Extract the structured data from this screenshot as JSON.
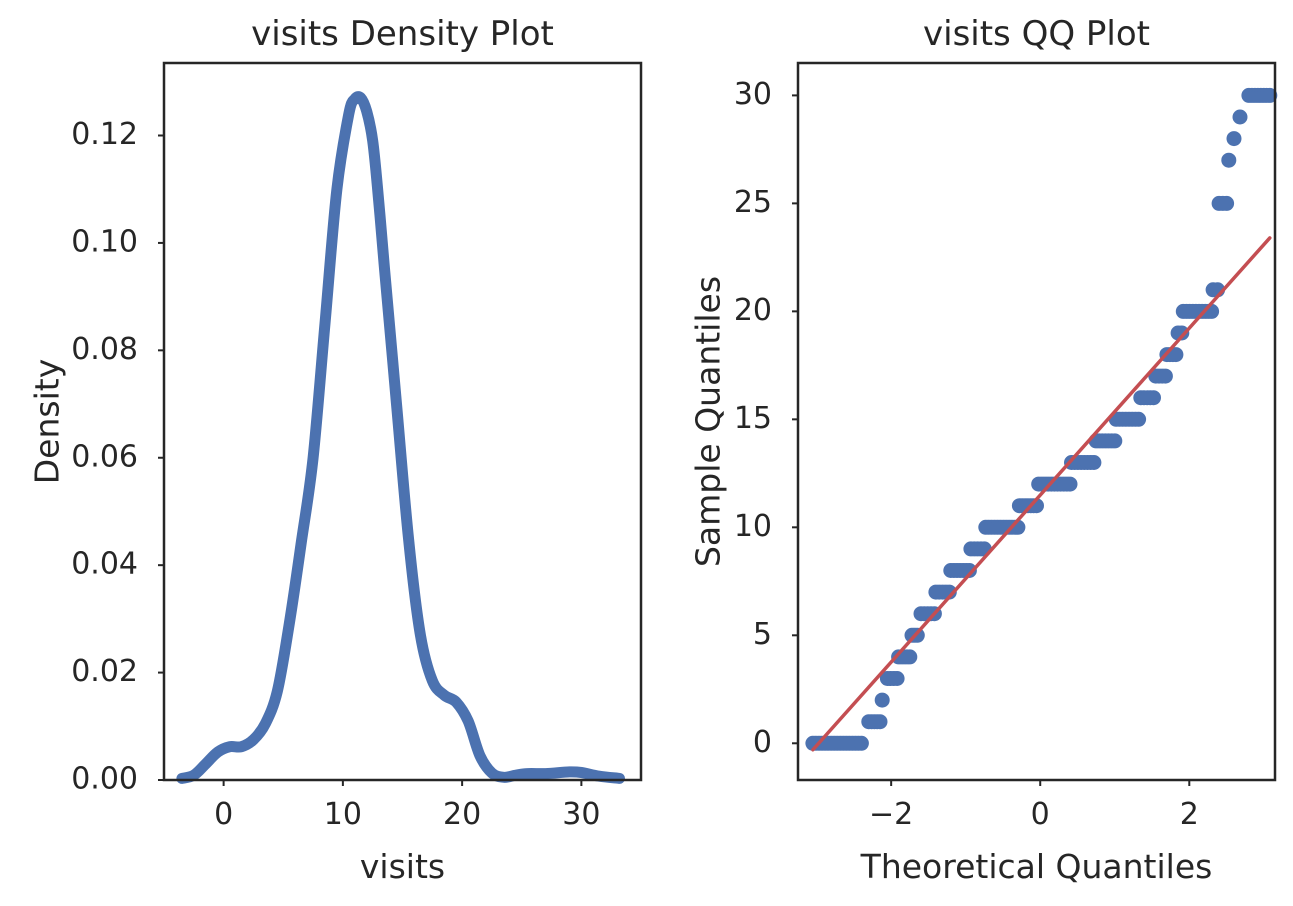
{
  "chart_data": [
    {
      "type": "line",
      "title": "visits Density Plot",
      "xlabel": "visits",
      "ylabel": "Density",
      "xlim": [
        -5,
        35
      ],
      "ylim": [
        0,
        0.1335
      ],
      "xticks": [
        0,
        10,
        20,
        30
      ],
      "xtick_labels": [
        "0",
        "10",
        "20",
        "30"
      ],
      "yticks": [
        0,
        0.02,
        0.04,
        0.06,
        0.08,
        0.1,
        0.12
      ],
      "ytick_labels": [
        "0.00",
        "0.02",
        "0.04",
        "0.06",
        "0.08",
        "0.10",
        "0.12"
      ],
      "grid": false,
      "color": "#4c72b0",
      "series": [
        {
          "x": [
            -3.5,
            -2.5,
            -1.5,
            -0.5,
            0.5,
            1.5,
            2.5,
            3.5,
            4.5,
            5.5,
            6.5,
            7.5,
            8.5,
            9.5,
            10.5,
            11.0,
            11.5,
            12.0,
            12.5,
            13.0,
            13.5,
            14.5,
            15.5,
            16.5,
            17.5,
            18.5,
            19.5,
            20.5,
            21.5,
            22.5,
            23.5,
            24.5,
            25.5,
            27.0,
            29.0,
            30.0,
            31.5,
            33.2
          ],
          "y": [
            0.0003,
            0.0009,
            0.003,
            0.0052,
            0.0062,
            0.0062,
            0.0075,
            0.0105,
            0.0165,
            0.029,
            0.044,
            0.06,
            0.085,
            0.11,
            0.124,
            0.1268,
            0.127,
            0.1245,
            0.119,
            0.108,
            0.095,
            0.07,
            0.045,
            0.027,
            0.0185,
            0.0158,
            0.0145,
            0.011,
            0.0045,
            0.0013,
            0.0005,
            0.0009,
            0.0012,
            0.0012,
            0.0015,
            0.0014,
            0.0007,
            0.0003
          ]
        }
      ]
    },
    {
      "type": "scatter",
      "title": "visits QQ Plot",
      "xlabel": "Theoretical Quantiles",
      "ylabel": "Sample Quantiles",
      "xlim": [
        -3.25,
        3.15
      ],
      "ylim": [
        -1.7,
        31.5
      ],
      "xticks": [
        -2,
        0,
        2
      ],
      "xtick_labels": [
        "−2",
        "0",
        "2"
      ],
      "yticks": [
        0,
        5,
        10,
        15,
        20,
        25,
        30
      ],
      "ytick_labels": [
        "0",
        "5",
        "10",
        "15",
        "20",
        "25",
        "30"
      ],
      "grid": false,
      "point_color": "#4c72b0",
      "line_color": "#c44e52",
      "steps": [
        {
          "y": 0,
          "x_start": -3.05,
          "x_end": -2.4
        },
        {
          "y": 1,
          "x_start": -2.3,
          "x_end": -2.15
        },
        {
          "y": 2,
          "x_start": -2.12,
          "x_end": -2.1
        },
        {
          "y": 3,
          "x_start": -2.05,
          "x_end": -1.92
        },
        {
          "y": 4,
          "x_start": -1.9,
          "x_end": -1.75
        },
        {
          "y": 5,
          "x_start": -1.72,
          "x_end": -1.65
        },
        {
          "y": 6,
          "x_start": -1.6,
          "x_end": -1.42
        },
        {
          "y": 7,
          "x_start": -1.4,
          "x_end": -1.22
        },
        {
          "y": 8,
          "x_start": -1.2,
          "x_end": -0.95
        },
        {
          "y": 9,
          "x_start": -0.93,
          "x_end": -0.75
        },
        {
          "y": 10,
          "x_start": -0.73,
          "x_end": -0.3
        },
        {
          "y": 11,
          "x_start": -0.28,
          "x_end": -0.05
        },
        {
          "y": 12,
          "x_start": -0.02,
          "x_end": 0.4
        },
        {
          "y": 13,
          "x_start": 0.42,
          "x_end": 0.72
        },
        {
          "y": 14,
          "x_start": 0.75,
          "x_end": 1.0
        },
        {
          "y": 15,
          "x_start": 1.02,
          "x_end": 1.32
        },
        {
          "y": 16,
          "x_start": 1.35,
          "x_end": 1.52
        },
        {
          "y": 17,
          "x_start": 1.55,
          "x_end": 1.68
        },
        {
          "y": 18,
          "x_start": 1.7,
          "x_end": 1.82
        },
        {
          "y": 19,
          "x_start": 1.85,
          "x_end": 1.9
        },
        {
          "y": 20,
          "x_start": 1.92,
          "x_end": 2.3
        },
        {
          "y": 21,
          "x_start": 2.32,
          "x_end": 2.38
        },
        {
          "y": 25,
          "x_start": 2.4,
          "x_end": 2.5
        },
        {
          "y": 27,
          "x_start": 2.53,
          "x_end": 2.53
        },
        {
          "y": 28,
          "x_start": 2.6,
          "x_end": 2.6
        },
        {
          "y": 29,
          "x_start": 2.68,
          "x_end": 2.68
        },
        {
          "y": 30,
          "x_start": 2.8,
          "x_end": 3.08
        }
      ],
      "reference_line": {
        "x": [
          -3.05,
          3.08
        ],
        "y": [
          -0.3,
          23.4
        ]
      }
    }
  ]
}
